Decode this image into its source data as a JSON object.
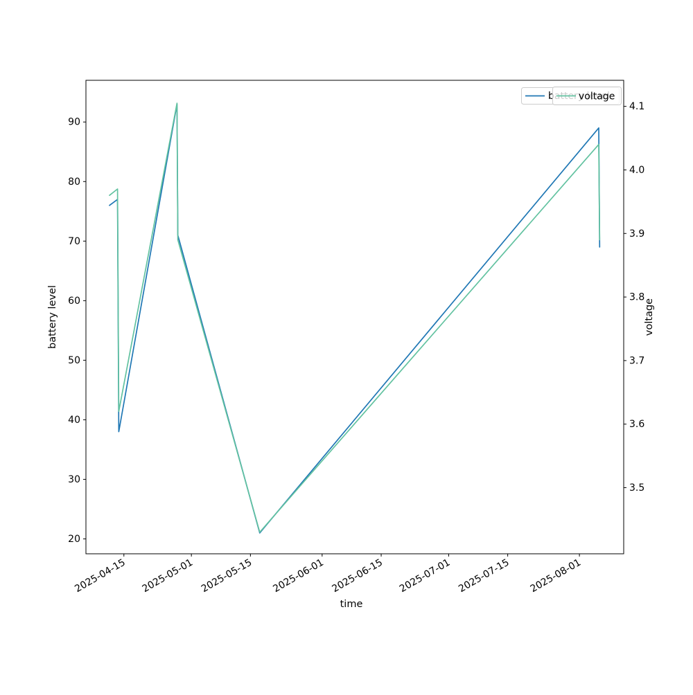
{
  "figure": {
    "background": "#ffffff"
  },
  "chart_data": {
    "type": "line",
    "title": "",
    "xlabel": "time",
    "ylabel_left": "battery level",
    "ylabel_right": "voltage",
    "grid": false,
    "x_range": [
      "2025-04-06T00:00",
      "2025-08-11T12:00"
    ],
    "y_left_range": [
      17.5,
      97.0
    ],
    "y_right_range": [
      3.396,
      4.141
    ],
    "x_ticks": [
      "2025-04-15",
      "2025-05-01",
      "2025-05-15",
      "2025-06-01",
      "2025-06-15",
      "2025-07-01",
      "2025-07-15",
      "2025-08-01"
    ],
    "y_left_ticks": [
      "20",
      "30",
      "40",
      "50",
      "60",
      "70",
      "80",
      "90"
    ],
    "y_right_ticks": [
      "3.5",
      "3.6",
      "3.7",
      "3.8",
      "3.9",
      "4.0",
      "4.1"
    ],
    "series": [
      {
        "name": "battery level",
        "axis": "left",
        "color": "#1f77b4",
        "points": [
          {
            "t": "2025-04-11T14:00",
            "v": 76
          },
          {
            "t": "2025-04-13T12:00",
            "v": 77
          },
          {
            "t": "2025-04-13T19:00",
            "v": 38
          },
          {
            "t": "2025-04-27T14:00",
            "v": 93
          },
          {
            "t": "2025-04-27T19:00",
            "v": 71
          },
          {
            "t": "2025-05-17T05:00",
            "v": 21
          },
          {
            "t": "2025-08-05T14:00",
            "v": 89
          },
          {
            "t": "2025-08-05T19:00",
            "v": 69
          }
        ]
      },
      {
        "name": "voltage",
        "axis": "right",
        "color": "#62c2a0",
        "points": [
          {
            "t": "2025-04-11T14:00",
            "v": 3.96
          },
          {
            "t": "2025-04-13T12:00",
            "v": 3.97
          },
          {
            "t": "2025-04-13T19:00",
            "v": 3.62
          },
          {
            "t": "2025-04-27T14:00",
            "v": 4.105
          },
          {
            "t": "2025-04-27T19:00",
            "v": 3.89
          },
          {
            "t": "2025-05-17T05:00",
            "v": 3.43
          },
          {
            "t": "2025-08-05T14:00",
            "v": 4.04
          },
          {
            "t": "2025-08-05T19:00",
            "v": 3.89
          }
        ]
      }
    ],
    "legend": {
      "position": "upper right",
      "style": "two overlapping legend boxes, voltage box drawn on top with semi-transparent white background",
      "entries": [
        {
          "label": "battery level",
          "color": "#1f77b4"
        },
        {
          "label": "voltage",
          "color": "#62c2a0"
        }
      ]
    }
  }
}
